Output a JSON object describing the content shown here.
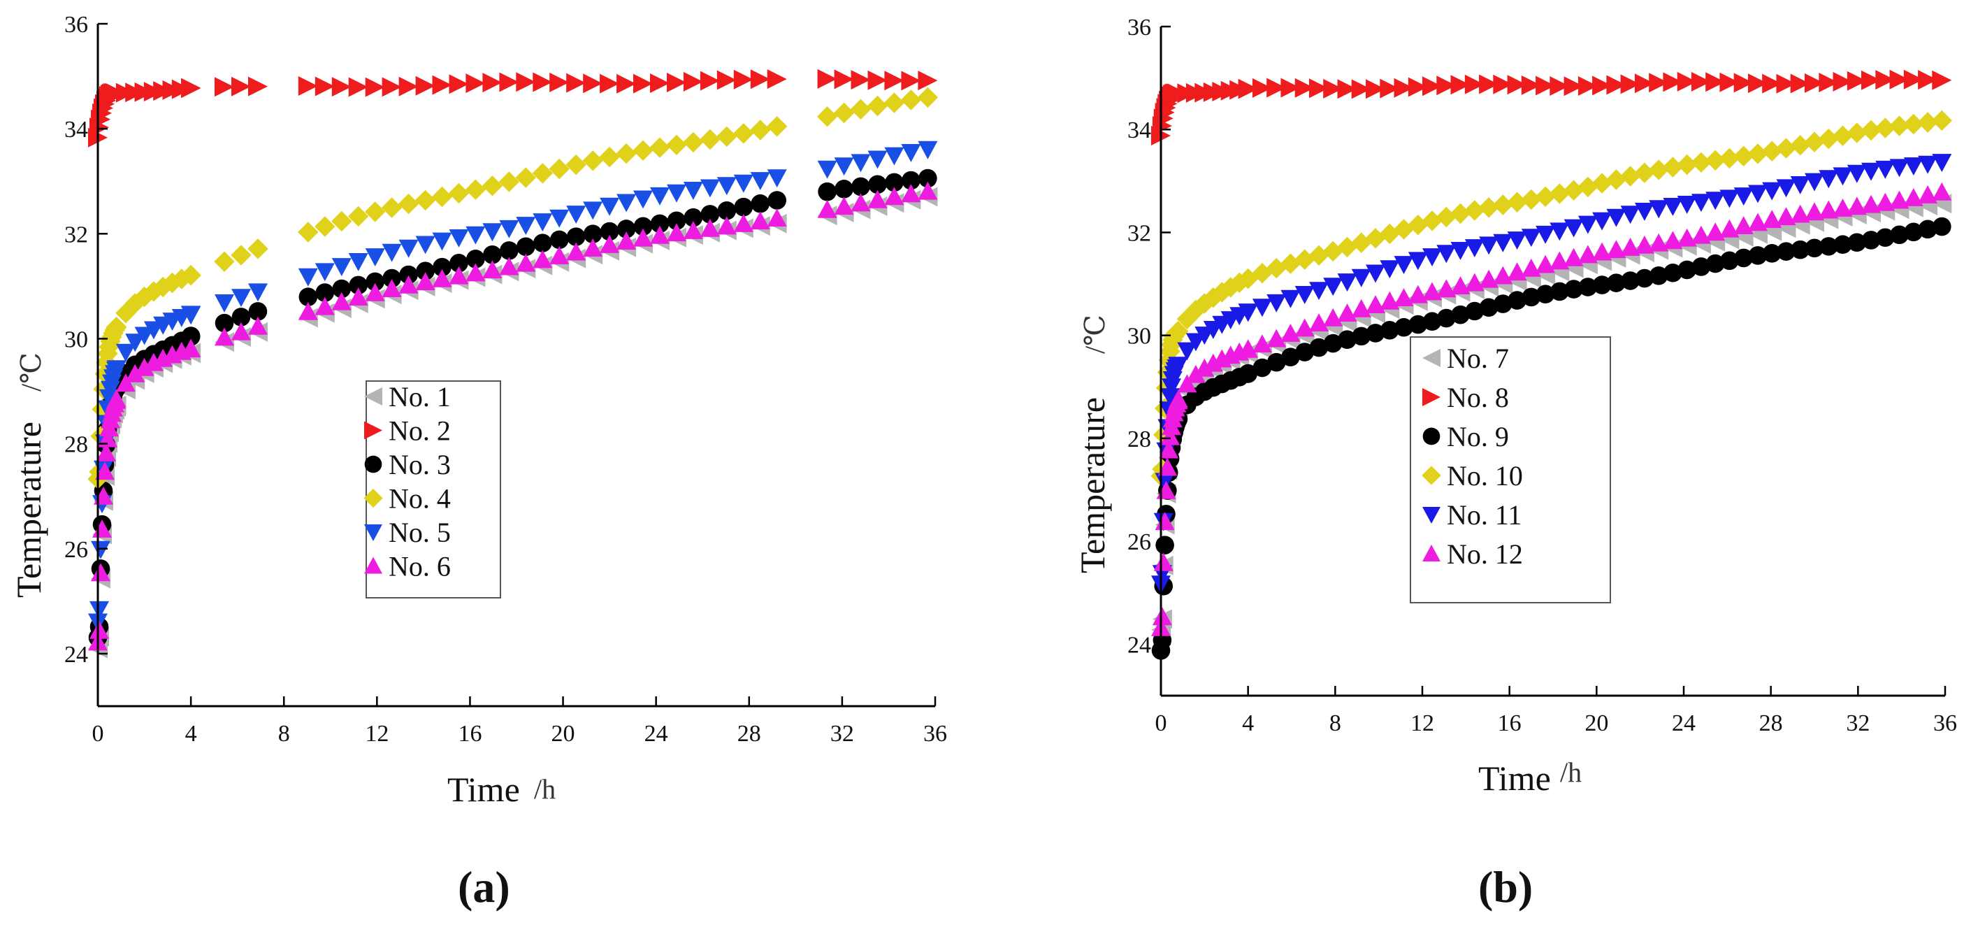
{
  "panels": [
    {
      "id": "a",
      "label": "(a)",
      "xlabel": "Time",
      "xunit": "/h",
      "ylabel": "Temperature",
      "yunit": "/℃",
      "legend": [
        "No. 1",
        "No. 2",
        "No. 3",
        "No. 4",
        "No. 5",
        "No. 6"
      ]
    },
    {
      "id": "b",
      "label": "(b)",
      "xlabel": "Time",
      "xunit": "/h",
      "ylabel": "Temperature",
      "yunit": "/℃",
      "legend": [
        "No. 7",
        "No. 8",
        "No. 9",
        "No. 10",
        "No. 11",
        "No. 12"
      ]
    }
  ],
  "chart_data": [
    {
      "type": "scatter",
      "title": "(a)",
      "xlabel": "Time/h",
      "ylabel": "Temperature /℃",
      "xlim": [
        0,
        36
      ],
      "ylim": [
        23,
        36
      ],
      "xticks": [
        "0",
        "4",
        "8",
        "12",
        "16",
        "20",
        "24",
        "28",
        "32",
        "36"
      ],
      "yticks": [
        "24",
        "26",
        "28",
        "30",
        "32",
        "34",
        "36"
      ],
      "grid": false,
      "legend_position": "center",
      "series": [
        {
          "name": "No. 1",
          "color": "#b4b4b4",
          "marker": "triangle-left",
          "x0": 0.05,
          "y0": 24.1,
          "y1": 28.9,
          "y36": 32.7
        },
        {
          "name": "No. 2",
          "color": "#ee1c1c",
          "marker": "triangle-right",
          "x0": 0.0,
          "y0": 33.85,
          "y1": 34.7,
          "y36": 34.95
        },
        {
          "name": "No. 3",
          "color": "#000000",
          "marker": "circle",
          "x0": 0.05,
          "y0": 24.3,
          "y1": 29.2,
          "y36": 33.1
        },
        {
          "name": "No. 4",
          "color": "#e0d21a",
          "marker": "diamond",
          "x0": 0.05,
          "y0": 27.3,
          "y1": 30.3,
          "y36": 34.6
        },
        {
          "name": "No. 5",
          "color": "#1a4fe6",
          "marker": "triangle-down",
          "x0": 0.05,
          "y0": 24.6,
          "y1": 29.6,
          "y36": 33.6
        },
        {
          "name": "No. 6",
          "color": "#ee1ce0",
          "marker": "triangle-up",
          "x0": 0.05,
          "y0": 24.2,
          "y1": 29.0,
          "y36": 32.8
        }
      ]
    },
    {
      "type": "scatter",
      "title": "(b)",
      "xlabel": "Time/h",
      "ylabel": "Temperature /℃",
      "xlim": [
        0,
        36
      ],
      "ylim": [
        23,
        36
      ],
      "xticks": [
        "0",
        "4",
        "8",
        "12",
        "16",
        "20",
        "24",
        "28",
        "32",
        "36"
      ],
      "yticks": [
        "24",
        "26",
        "28",
        "30",
        "32",
        "34",
        "36"
      ],
      "grid": false,
      "legend_position": "center-left",
      "series": [
        {
          "name": "No. 7",
          "color": "#b4b4b4",
          "marker": "triangle-left",
          "x0": 0.05,
          "y0": 24.3,
          "y1": 28.8,
          "y36": 32.6
        },
        {
          "name": "No. 8",
          "color": "#ee1c1c",
          "marker": "triangle-right",
          "x0": 0.0,
          "y0": 33.9,
          "y1": 34.72,
          "y36": 34.95
        },
        {
          "name": "No. 9",
          "color": "#000000",
          "marker": "circle",
          "x0": 0.05,
          "y0": 23.85,
          "y1": 28.5,
          "y36": 32.1
        },
        {
          "name": "No. 10",
          "color": "#e0d21a",
          "marker": "diamond",
          "x0": 0.05,
          "y0": 27.3,
          "y1": 30.2,
          "y36": 34.2
        },
        {
          "name": "No. 11",
          "color": "#1a1ae6",
          "marker": "triangle-down",
          "x0": 0.05,
          "y0": 25.2,
          "y1": 29.6,
          "y36": 33.4
        },
        {
          "name": "No. 12",
          "color": "#ee1ce0",
          "marker": "triangle-up",
          "x0": 0.05,
          "y0": 24.3,
          "y1": 28.9,
          "y36": 32.8
        }
      ]
    }
  ]
}
